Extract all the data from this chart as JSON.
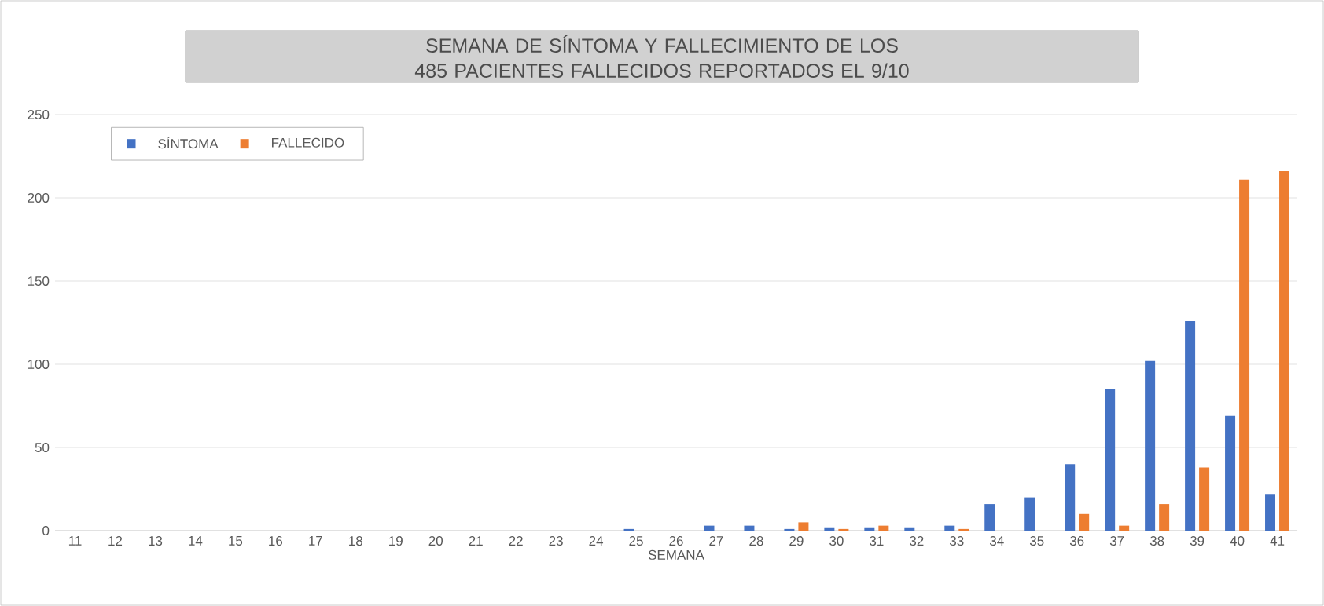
{
  "chart_data": {
    "type": "bar",
    "title": "SEMANA DE SÍNTOMA Y FALLECIMIENTO DE LOS 485 PACIENTES FALLECIDOS REPORTADOS EL 9/10",
    "xlabel": "SEMANA",
    "categories": [
      "11",
      "12",
      "13",
      "14",
      "15",
      "16",
      "17",
      "18",
      "19",
      "20",
      "21",
      "22",
      "23",
      "24",
      "25",
      "26",
      "27",
      "28",
      "29",
      "30",
      "31",
      "32",
      "33",
      "34",
      "35",
      "36",
      "37",
      "38",
      "39",
      "40",
      "41"
    ],
    "series": [
      {
        "name": "SÍNTOMA",
        "color": "#4472c4",
        "values": [
          0,
          0,
          0,
          0,
          0,
          0,
          0,
          0,
          0,
          0,
          0,
          0,
          0,
          0,
          1,
          0,
          3,
          3,
          1,
          2,
          2,
          2,
          3,
          16,
          20,
          40,
          85,
          102,
          126,
          69,
          22
        ]
      },
      {
        "name": "FALLECIDO",
        "color": "#ed7d31",
        "values": [
          0,
          0,
          0,
          0,
          0,
          0,
          0,
          0,
          0,
          0,
          0,
          0,
          0,
          0,
          0,
          0,
          0,
          0,
          5,
          1,
          3,
          0,
          1,
          0,
          0,
          10,
          3,
          16,
          38,
          211,
          216
        ]
      }
    ],
    "ylim": [
      0,
      250
    ],
    "yticks": [
      0,
      50,
      100,
      150,
      200,
      250
    ],
    "grid": "y",
    "legend": "top left"
  }
}
